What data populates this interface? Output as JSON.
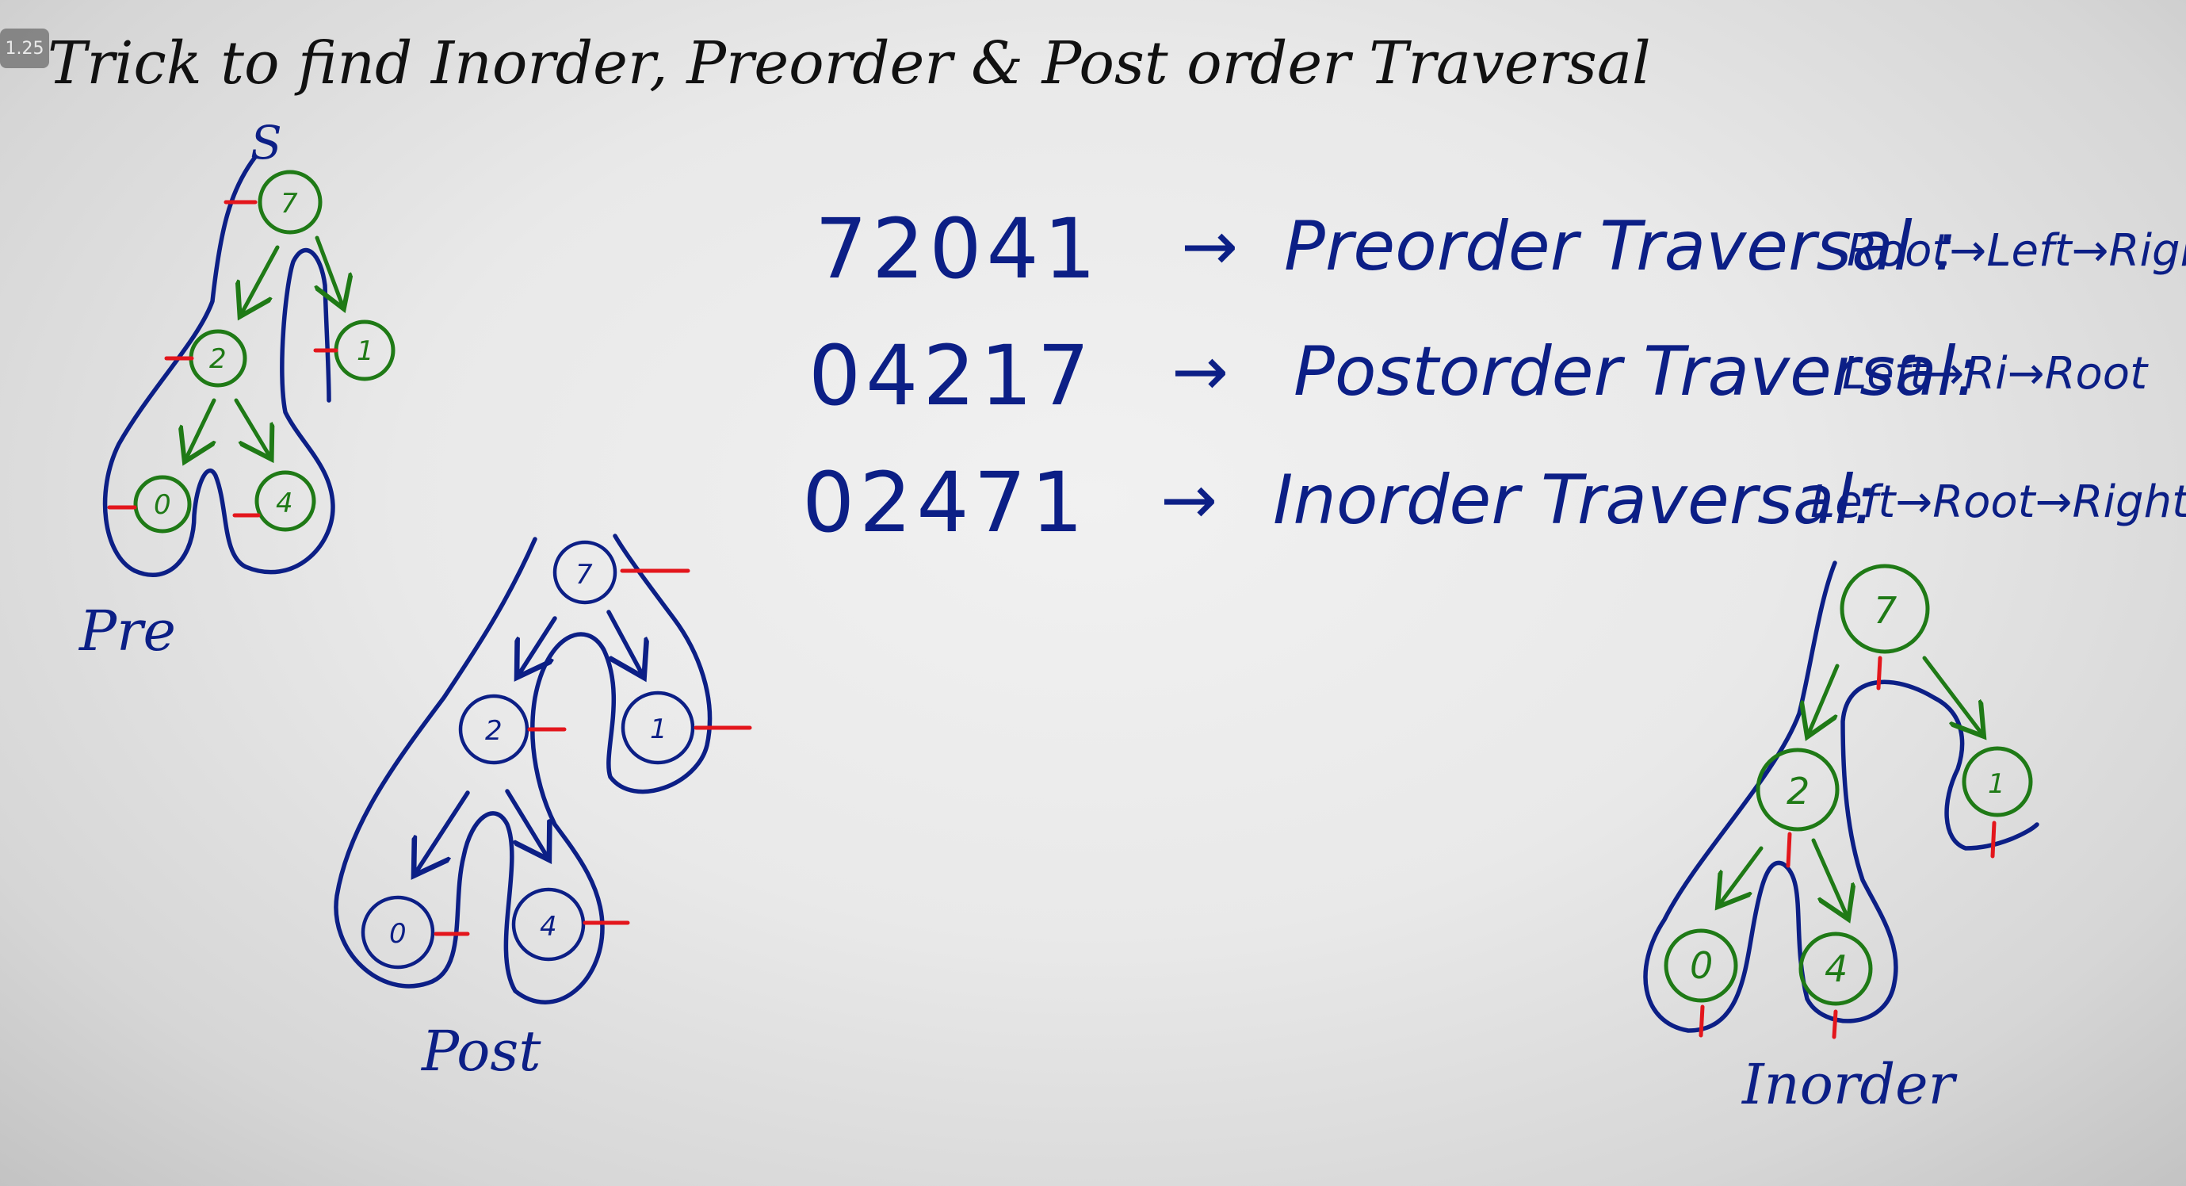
{
  "overlay": {
    "playback_speed": "1.25"
  },
  "title": "Trick to find Inorder, Preorder & Post order Traversal",
  "rows": [
    {
      "sequence": "72041",
      "arrow": "→",
      "name": "Preorder Traversal :",
      "rule": "Root→Left→Right"
    },
    {
      "sequence": "04217",
      "arrow": "→",
      "name": "Postorder Traversal:",
      "rule": "Left→Ri→Root"
    },
    {
      "sequence": "02471",
      "arrow": "→",
      "name": "Inorder Traversal:",
      "rule": "Left→Root→Right"
    }
  ],
  "trees": {
    "pre": {
      "caption": "Pre",
      "start_label": "S",
      "nodes": [
        "7",
        "2",
        "1",
        "0",
        "4"
      ]
    },
    "post": {
      "caption": "Post",
      "nodes": [
        "7",
        "2",
        "1",
        "0",
        "4"
      ]
    },
    "in": {
      "caption": "Inorder",
      "nodes": [
        "7",
        "2",
        "1",
        "0",
        "4"
      ]
    }
  },
  "colors": {
    "ink_blue": "#0c1f86",
    "ink_green": "#1f7a16",
    "ink_red": "#e3161c",
    "title_black": "#111111"
  }
}
